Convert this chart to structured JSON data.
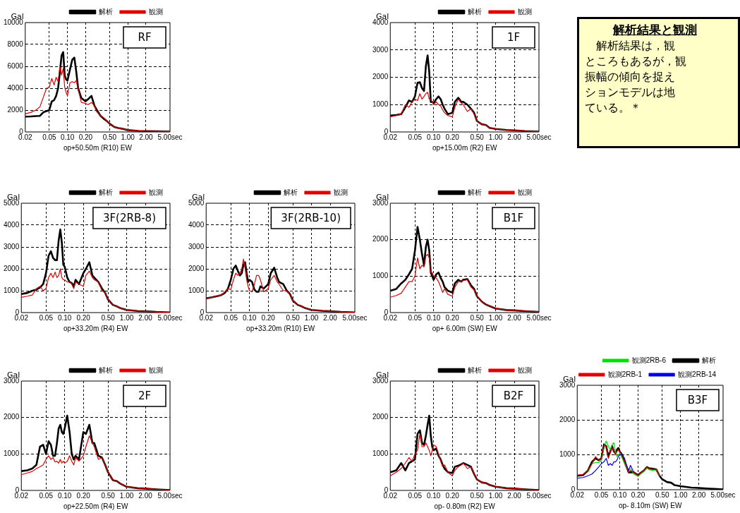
{
  "chart_data": [
    {
      "type": "line",
      "xlabel": "op+50.50m (R10) EW",
      "ylabel": "Gal",
      "annotations": [
        "RF"
      ],
      "log": "x",
      "grid": true,
      "legend": "top",
      "marker": "none",
      "line_style": "solid",
      "xlim": [
        0.02,
        5
      ],
      "ylim": [
        0,
        10000
      ],
      "yticks": [
        0,
        2000,
        4000,
        6000,
        8000,
        10000
      ],
      "xticks": [
        {
          "value": 0.02,
          "label": "0.02"
        },
        {
          "value": 0.05,
          "label": "0.05"
        },
        {
          "value": 0.1,
          "label": "0.10"
        },
        {
          "value": 0.2,
          "label": "0.20"
        },
        {
          "value": 0.5,
          "label": "0.50"
        },
        {
          "value": 1,
          "label": "1.00"
        },
        {
          "value": 2,
          "label": "2.00"
        },
        {
          "value": 5,
          "label": "5.00sec"
        }
      ],
      "x": [
        0.02,
        0.025,
        0.03,
        0.035,
        0.04,
        0.045,
        0.05,
        0.055,
        0.06,
        0.065,
        0.07,
        0.075,
        0.08,
        0.085,
        0.09,
        0.095,
        0.1,
        0.11,
        0.12,
        0.13,
        0.14,
        0.15,
        0.17,
        0.2,
        0.22,
        0.25,
        0.28,
        0.3,
        0.35,
        0.4,
        0.45,
        0.5,
        0.6,
        0.7,
        0.8,
        1,
        1.5,
        2,
        3,
        5
      ],
      "series": [
        {
          "name": "解析",
          "color": "#000000",
          "values": [
            1400,
            1420,
            1450,
            1470,
            1800,
            1900,
            2000,
            2800,
            2900,
            3300,
            4000,
            5500,
            7000,
            7300,
            5200,
            4800,
            4700,
            5700,
            6600,
            6800,
            5500,
            4000,
            3100,
            2800,
            3000,
            3300,
            2400,
            2100,
            1500,
            1200,
            1000,
            750,
            450,
            350,
            300,
            170,
            100,
            80,
            60,
            30
          ]
        },
        {
          "name": "観測",
          "color": "#e00000",
          "values": [
            1650,
            1800,
            2000,
            2300,
            3200,
            4000,
            4100,
            4900,
            4300,
            5000,
            4600,
            6000,
            5200,
            5800,
            4100,
            3600,
            3300,
            4500,
            4600,
            4500,
            4700,
            3900,
            2700,
            2600,
            2500,
            2700,
            2400,
            1900,
            1500,
            1300,
            1000,
            700,
            450,
            350,
            300,
            180,
            100,
            80,
            60,
            30
          ]
        }
      ]
    },
    {
      "type": "line",
      "xlabel": "op+15.00m (R2) EW",
      "ylabel": "Gal",
      "annotations": [
        "1F"
      ],
      "log": "x",
      "grid": true,
      "legend": "top",
      "marker": "none",
      "line_style": "solid",
      "xlim": [
        0.02,
        5
      ],
      "ylim": [
        0,
        4000
      ],
      "yticks": [
        0,
        1000,
        2000,
        3000,
        4000
      ],
      "xticks": [
        {
          "value": 0.02,
          "label": "0.02"
        },
        {
          "value": 0.05,
          "label": "0.05"
        },
        {
          "value": 0.1,
          "label": "0.10"
        },
        {
          "value": 0.2,
          "label": "0.20"
        },
        {
          "value": 0.5,
          "label": "0.50"
        },
        {
          "value": 1,
          "label": "1.00"
        },
        {
          "value": 2,
          "label": "2.00"
        },
        {
          "value": 5,
          "label": "5.00sec"
        }
      ],
      "x": [
        0.02,
        0.025,
        0.03,
        0.035,
        0.04,
        0.045,
        0.05,
        0.055,
        0.06,
        0.065,
        0.07,
        0.075,
        0.08,
        0.085,
        0.09,
        0.095,
        0.1,
        0.11,
        0.12,
        0.13,
        0.14,
        0.15,
        0.17,
        0.2,
        0.22,
        0.25,
        0.28,
        0.3,
        0.35,
        0.4,
        0.45,
        0.5,
        0.6,
        0.7,
        0.8,
        1,
        1.5,
        2,
        3,
        5
      ],
      "series": [
        {
          "name": "解析",
          "color": "#000000",
          "values": [
            600,
            620,
            650,
            900,
            1150,
            1100,
            1300,
            1800,
            1820,
            1600,
            1500,
            2400,
            2800,
            2200,
            1100,
            1100,
            1050,
            1200,
            1300,
            1200,
            1000,
            850,
            650,
            700,
            1100,
            1250,
            1100,
            1100,
            1000,
            850,
            700,
            400,
            280,
            250,
            150,
            110,
            70,
            60,
            30,
            10
          ]
        },
        {
          "name": "観測",
          "color": "#e00000",
          "values": [
            550,
            600,
            650,
            1000,
            900,
            1100,
            1200,
            1150,
            1400,
            1200,
            1300,
            1400,
            1450,
            1200,
            1200,
            1100,
            1000,
            1100,
            1000,
            950,
            800,
            700,
            600,
            550,
            900,
            1200,
            1050,
            1000,
            750,
            850,
            650,
            400,
            280,
            240,
            140,
            110,
            70,
            60,
            30,
            10
          ]
        }
      ]
    },
    {
      "type": "line",
      "xlabel": "op+33.20m (R4) EW",
      "ylabel": "Gal",
      "annotations": [
        "3F(2RB-8)"
      ],
      "log": "x",
      "grid": true,
      "legend": "top",
      "marker": "none",
      "line_style": "solid",
      "xlim": [
        0.02,
        5
      ],
      "ylim": [
        0,
        5000
      ],
      "yticks": [
        0,
        1000,
        2000,
        3000,
        4000,
        5000
      ],
      "xticks": [
        {
          "value": 0.02,
          "label": "0.02"
        },
        {
          "value": 0.05,
          "label": "0.05"
        },
        {
          "value": 0.1,
          "label": "0.10"
        },
        {
          "value": 0.2,
          "label": "0.20"
        },
        {
          "value": 0.5,
          "label": "0.50"
        },
        {
          "value": 1,
          "label": "1.00"
        },
        {
          "value": 2,
          "label": "2.00"
        },
        {
          "value": 5,
          "label": "5.00sec"
        }
      ],
      "x": [
        0.02,
        0.025,
        0.03,
        0.035,
        0.04,
        0.045,
        0.05,
        0.055,
        0.06,
        0.065,
        0.07,
        0.075,
        0.08,
        0.085,
        0.09,
        0.095,
        0.1,
        0.11,
        0.12,
        0.13,
        0.14,
        0.15,
        0.17,
        0.2,
        0.22,
        0.25,
        0.28,
        0.3,
        0.35,
        0.4,
        0.45,
        0.5,
        0.6,
        0.7,
        0.8,
        1,
        1.5,
        2,
        3,
        5
      ],
      "series": [
        {
          "name": "解析",
          "color": "#000000",
          "values": [
            850,
            900,
            1000,
            1050,
            1150,
            1300,
            1800,
            2600,
            2800,
            2500,
            2400,
            2400,
            3300,
            3800,
            3200,
            2200,
            2100,
            1600,
            1400,
            1350,
            1200,
            1500,
            1300,
            1800,
            2000,
            2300,
            1700,
            1600,
            1400,
            1100,
            900,
            600,
            350,
            280,
            200,
            120,
            70,
            60,
            30,
            10
          ]
        },
        {
          "name": "観測",
          "color": "#e00000",
          "values": [
            700,
            750,
            800,
            1100,
            1200,
            1000,
            1100,
            1600,
            1800,
            1600,
            1850,
            1600,
            1700,
            2000,
            1600,
            1500,
            1500,
            1400,
            1400,
            1300,
            1100,
            1400,
            1300,
            1200,
            1700,
            1900,
            1600,
            1500,
            1400,
            1000,
            900,
            600,
            350,
            280,
            200,
            120,
            70,
            60,
            30,
            10
          ]
        }
      ]
    },
    {
      "type": "line",
      "xlabel": "op+33.20m (R10) EW",
      "ylabel": "Gal",
      "annotations": [
        "3F(2RB-10)"
      ],
      "log": "x",
      "grid": true,
      "legend": "top",
      "marker": "none",
      "line_style": "solid",
      "xlim": [
        0.02,
        5
      ],
      "ylim": [
        0,
        5000
      ],
      "yticks": [
        0,
        1000,
        2000,
        3000,
        4000,
        5000
      ],
      "xticks": [
        {
          "value": 0.02,
          "label": "0.02"
        },
        {
          "value": 0.05,
          "label": "0.05"
        },
        {
          "value": 0.1,
          "label": "0.10"
        },
        {
          "value": 0.2,
          "label": "0.20"
        },
        {
          "value": 0.5,
          "label": "0.50"
        },
        {
          "value": 1,
          "label": "1.00"
        },
        {
          "value": 2,
          "label": "2.00"
        },
        {
          "value": 5,
          "label": "5.00sec"
        }
      ],
      "x": [
        0.02,
        0.025,
        0.03,
        0.035,
        0.04,
        0.045,
        0.05,
        0.055,
        0.06,
        0.065,
        0.07,
        0.075,
        0.08,
        0.085,
        0.09,
        0.095,
        0.1,
        0.11,
        0.12,
        0.13,
        0.14,
        0.15,
        0.17,
        0.2,
        0.22,
        0.25,
        0.28,
        0.3,
        0.35,
        0.4,
        0.45,
        0.5,
        0.6,
        0.7,
        0.8,
        1,
        1.5,
        2,
        3,
        5
      ],
      "series": [
        {
          "name": "解析",
          "color": "#000000",
          "values": [
            650,
            700,
            750,
            800,
            900,
            1100,
            1500,
            2000,
            2150,
            1900,
            1700,
            1800,
            2200,
            2300,
            1800,
            1400,
            1500,
            1400,
            1050,
            950,
            950,
            1200,
            1100,
            1300,
            1800,
            2050,
            1600,
            1400,
            1300,
            1000,
            850,
            550,
            350,
            280,
            200,
            120,
            80,
            60,
            30,
            10
          ]
        },
        {
          "name": "観測",
          "color": "#e00000",
          "values": [
            650,
            700,
            750,
            800,
            950,
            1100,
            1050,
            1500,
            1800,
            1700,
            1800,
            2000,
            2450,
            2000,
            1500,
            1200,
            1000,
            950,
            1300,
            1700,
            1700,
            1500,
            950,
            1100,
            1500,
            1700,
            1400,
            1300,
            1000,
            1000,
            800,
            550,
            350,
            280,
            200,
            120,
            80,
            60,
            30,
            10
          ]
        }
      ]
    },
    {
      "type": "line",
      "xlabel": "op+ 6.00m (SW) EW",
      "ylabel": "Gal",
      "annotations": [
        "B1F"
      ],
      "log": "x",
      "grid": true,
      "legend": "top",
      "marker": "none",
      "line_style": "solid",
      "xlim": [
        0.02,
        5
      ],
      "ylim": [
        0,
        3000
      ],
      "yticks": [
        0,
        1000,
        2000,
        3000
      ],
      "xticks": [
        {
          "value": 0.02,
          "label": "0.02"
        },
        {
          "value": 0.05,
          "label": "0.05"
        },
        {
          "value": 0.1,
          "label": "0.10"
        },
        {
          "value": 0.2,
          "label": "0.20"
        },
        {
          "value": 0.5,
          "label": "0.50"
        },
        {
          "value": 1,
          "label": "1.00"
        },
        {
          "value": 2,
          "label": "2.00"
        },
        {
          "value": 5,
          "label": "5.00sec"
        }
      ],
      "x": [
        0.02,
        0.025,
        0.03,
        0.035,
        0.04,
        0.045,
        0.05,
        0.055,
        0.06,
        0.065,
        0.07,
        0.075,
        0.08,
        0.085,
        0.09,
        0.095,
        0.1,
        0.11,
        0.12,
        0.13,
        0.14,
        0.15,
        0.17,
        0.2,
        0.22,
        0.25,
        0.28,
        0.3,
        0.35,
        0.4,
        0.45,
        0.5,
        0.6,
        0.7,
        0.8,
        1,
        1.5,
        2,
        3,
        5
      ],
      "series": [
        {
          "name": "解析",
          "color": "#000000",
          "values": [
            600,
            650,
            800,
            900,
            1050,
            1200,
            1700,
            2350,
            2000,
            1600,
            1300,
            1800,
            2000,
            1700,
            1100,
            1000,
            900,
            1050,
            1100,
            950,
            850,
            700,
            600,
            550,
            800,
            900,
            850,
            900,
            920,
            750,
            650,
            450,
            300,
            220,
            180,
            110,
            70,
            60,
            40,
            20
          ]
        },
        {
          "name": "観測",
          "color": "#e00000",
          "values": [
            420,
            470,
            530,
            700,
            850,
            850,
            1000,
            1500,
            1200,
            1300,
            1250,
            1550,
            1600,
            1500,
            1100,
            1100,
            1000,
            950,
            850,
            700,
            550,
            650,
            500,
            450,
            700,
            850,
            850,
            880,
            900,
            700,
            620,
            450,
            300,
            220,
            180,
            110,
            70,
            60,
            40,
            20
          ]
        }
      ]
    },
    {
      "type": "line",
      "xlabel": "op+22.50m (R4) EW",
      "ylabel": "Gal",
      "annotations": [
        "2F"
      ],
      "log": "x",
      "grid": true,
      "legend": "top",
      "marker": "none",
      "line_style": "solid",
      "xlim": [
        0.02,
        5
      ],
      "ylim": [
        0,
        3000
      ],
      "yticks": [
        0,
        1000,
        2000,
        3000
      ],
      "xticks": [
        {
          "value": 0.02,
          "label": "0.02"
        },
        {
          "value": 0.05,
          "label": "0.05"
        },
        {
          "value": 0.1,
          "label": "0.10"
        },
        {
          "value": 0.2,
          "label": "0.20"
        },
        {
          "value": 0.5,
          "label": "0.50"
        },
        {
          "value": 1,
          "label": "1.00"
        },
        {
          "value": 2,
          "label": "2.00"
        },
        {
          "value": 5,
          "label": "5.00sec"
        }
      ],
      "x": [
        0.02,
        0.025,
        0.03,
        0.035,
        0.04,
        0.045,
        0.05,
        0.055,
        0.06,
        0.065,
        0.07,
        0.075,
        0.08,
        0.085,
        0.09,
        0.095,
        0.1,
        0.11,
        0.12,
        0.13,
        0.14,
        0.15,
        0.17,
        0.2,
        0.22,
        0.25,
        0.28,
        0.3,
        0.35,
        0.4,
        0.45,
        0.5,
        0.6,
        0.7,
        0.8,
        1,
        1.5,
        2,
        3,
        5
      ],
      "series": [
        {
          "name": "解析",
          "color": "#000000",
          "values": [
            530,
            550,
            600,
            700,
            1200,
            1250,
            1000,
            1350,
            1250,
            950,
            950,
            1300,
            1700,
            1800,
            1600,
            1550,
            1700,
            2050,
            1600,
            1000,
            850,
            950,
            850,
            1600,
            1550,
            1800,
            1300,
            1300,
            950,
            900,
            700,
            500,
            280,
            250,
            180,
            100,
            60,
            50,
            30,
            10
          ]
        },
        {
          "name": "観測",
          "color": "#e00000",
          "values": [
            430,
            480,
            520,
            600,
            650,
            700,
            850,
            950,
            850,
            900,
            780,
            800,
            750,
            850,
            750,
            800,
            750,
            800,
            950,
            800,
            700,
            900,
            800,
            950,
            1200,
            1500,
            1300,
            1200,
            850,
            900,
            700,
            500,
            280,
            240,
            180,
            100,
            60,
            50,
            30,
            10
          ]
        }
      ]
    },
    {
      "type": "line",
      "xlabel": "op- 0.80m (R2) EW",
      "ylabel": "Gal",
      "annotations": [
        "B2F"
      ],
      "log": "x",
      "grid": true,
      "legend": "top",
      "marker": "none",
      "line_style": "solid",
      "xlim": [
        0.02,
        5
      ],
      "ylim": [
        0,
        3000
      ],
      "yticks": [
        0,
        1000,
        2000,
        3000
      ],
      "xticks": [
        {
          "value": 0.02,
          "label": "0.02"
        },
        {
          "value": 0.05,
          "label": "0.05"
        },
        {
          "value": 0.1,
          "label": "0.10"
        },
        {
          "value": 0.2,
          "label": "0.20"
        },
        {
          "value": 0.5,
          "label": "0.50"
        },
        {
          "value": 1,
          "label": "1.00"
        },
        {
          "value": 2,
          "label": "2.00"
        },
        {
          "value": 5,
          "label": "5.00sec"
        }
      ],
      "x": [
        0.02,
        0.025,
        0.03,
        0.035,
        0.04,
        0.045,
        0.05,
        0.055,
        0.06,
        0.065,
        0.07,
        0.075,
        0.08,
        0.085,
        0.09,
        0.095,
        0.1,
        0.11,
        0.12,
        0.13,
        0.14,
        0.15,
        0.17,
        0.2,
        0.22,
        0.25,
        0.28,
        0.3,
        0.35,
        0.4,
        0.45,
        0.5,
        0.6,
        0.7,
        0.8,
        1,
        1.5,
        2,
        3,
        5
      ],
      "series": [
        {
          "name": "解析",
          "color": "#000000",
          "values": [
            500,
            550,
            750,
            550,
            750,
            800,
            850,
            1550,
            1650,
            1300,
            1250,
            1500,
            1800,
            2050,
            1500,
            1200,
            1100,
            1150,
            950,
            850,
            700,
            600,
            500,
            480,
            650,
            680,
            720,
            750,
            700,
            650,
            450,
            300,
            220,
            200,
            150,
            100,
            60,
            50,
            30,
            10
          ]
        },
        {
          "name": "観測",
          "color": "#e00000",
          "values": [
            400,
            500,
            600,
            750,
            900,
            800,
            1000,
            1100,
            1550,
            1200,
            1200,
            1300,
            1200,
            1100,
            950,
            1100,
            1250,
            1200,
            1000,
            800,
            650,
            700,
            500,
            400,
            550,
            650,
            700,
            750,
            600,
            650,
            450,
            300,
            220,
            200,
            150,
            100,
            60,
            50,
            30,
            10
          ]
        }
      ]
    },
    {
      "type": "line",
      "xlabel": "op- 8.10m (SW) EW",
      "ylabel": "Gal",
      "annotations": [
        "B3F"
      ],
      "log": "x",
      "grid": true,
      "legend": "top",
      "marker": "none",
      "line_style": "solid",
      "xlim": [
        0.02,
        5
      ],
      "ylim": [
        0,
        3000
      ],
      "yticks": [
        0,
        1000,
        2000,
        3000
      ],
      "xticks": [
        {
          "value": 0.02,
          "label": "0.02"
        },
        {
          "value": 0.05,
          "label": "0.05"
        },
        {
          "value": 0.1,
          "label": "0.10"
        },
        {
          "value": 0.2,
          "label": "0.20"
        },
        {
          "value": 0.5,
          "label": "0.50"
        },
        {
          "value": 1,
          "label": "1.00"
        },
        {
          "value": 2,
          "label": "2.00"
        },
        {
          "value": 5,
          "label": "5.00sec"
        }
      ],
      "x": [
        0.02,
        0.025,
        0.03,
        0.035,
        0.04,
        0.045,
        0.05,
        0.055,
        0.06,
        0.065,
        0.07,
        0.075,
        0.08,
        0.085,
        0.09,
        0.095,
        0.1,
        0.11,
        0.12,
        0.13,
        0.14,
        0.15,
        0.17,
        0.2,
        0.22,
        0.25,
        0.28,
        0.3,
        0.35,
        0.4,
        0.45,
        0.5,
        0.6,
        0.7,
        0.8,
        1,
        1.5,
        2,
        3,
        5
      ],
      "series": [
        {
          "name": "観測2RB-6",
          "color": "#00e000",
          "values": [
            null,
            null,
            500,
            750,
            780,
            780,
            850,
            1200,
            1400,
            1250,
            1150,
            1300,
            1350,
            1100,
            950,
            1000,
            1050,
            900,
            750,
            600,
            550,
            600,
            450,
            380,
            450,
            520,
            620,
            580,
            550,
            580,
            380,
            null,
            null,
            null,
            null,
            null,
            null,
            null,
            null,
            null
          ]
        },
        {
          "name": "解析",
          "color": "#000000",
          "values": [
            400,
            420,
            550,
            800,
            900,
            850,
            900,
            1300,
            1250,
            950,
            1100,
            1250,
            1100,
            1050,
            1150,
            1200,
            1100,
            1000,
            800,
            650,
            500,
            500,
            500,
            420,
            480,
            550,
            650,
            620,
            600,
            580,
            400,
            300,
            220,
            200,
            130,
            100,
            60,
            50,
            30,
            10
          ]
        },
        {
          "name": "観測2RB-1",
          "color": "#e00000",
          "values": [
            420,
            440,
            550,
            750,
            950,
            850,
            900,
            1250,
            1250,
            900,
            1100,
            1200,
            1100,
            1000,
            1100,
            1150,
            1100,
            950,
            800,
            650,
            500,
            550,
            500,
            400,
            480,
            550,
            650,
            600,
            580,
            580,
            400,
            null,
            null,
            null,
            null,
            null,
            null,
            null,
            null,
            null
          ]
        },
        {
          "name": "観測2RB-14",
          "color": "#0000e0",
          "values": [
            330,
            350,
            400,
            450,
            550,
            650,
            750,
            800,
            900,
            700,
            750,
            700,
            800,
            800,
            850,
            950,
            1000,
            1000,
            900,
            700,
            550,
            700,
            500,
            null,
            null,
            null,
            null,
            null,
            null,
            null,
            null,
            null,
            null,
            null,
            null,
            null,
            null,
            null,
            null,
            null
          ]
        }
      ]
    },
    {
      "type": "other",
      "title": "解析結果と観測",
      "annotations": [
        "解析結果は，観",
        "ところもあるが，観",
        "振幅の傾向を捉え",
        "ションモデルは地",
        "ている。＊"
      ]
    }
  ]
}
